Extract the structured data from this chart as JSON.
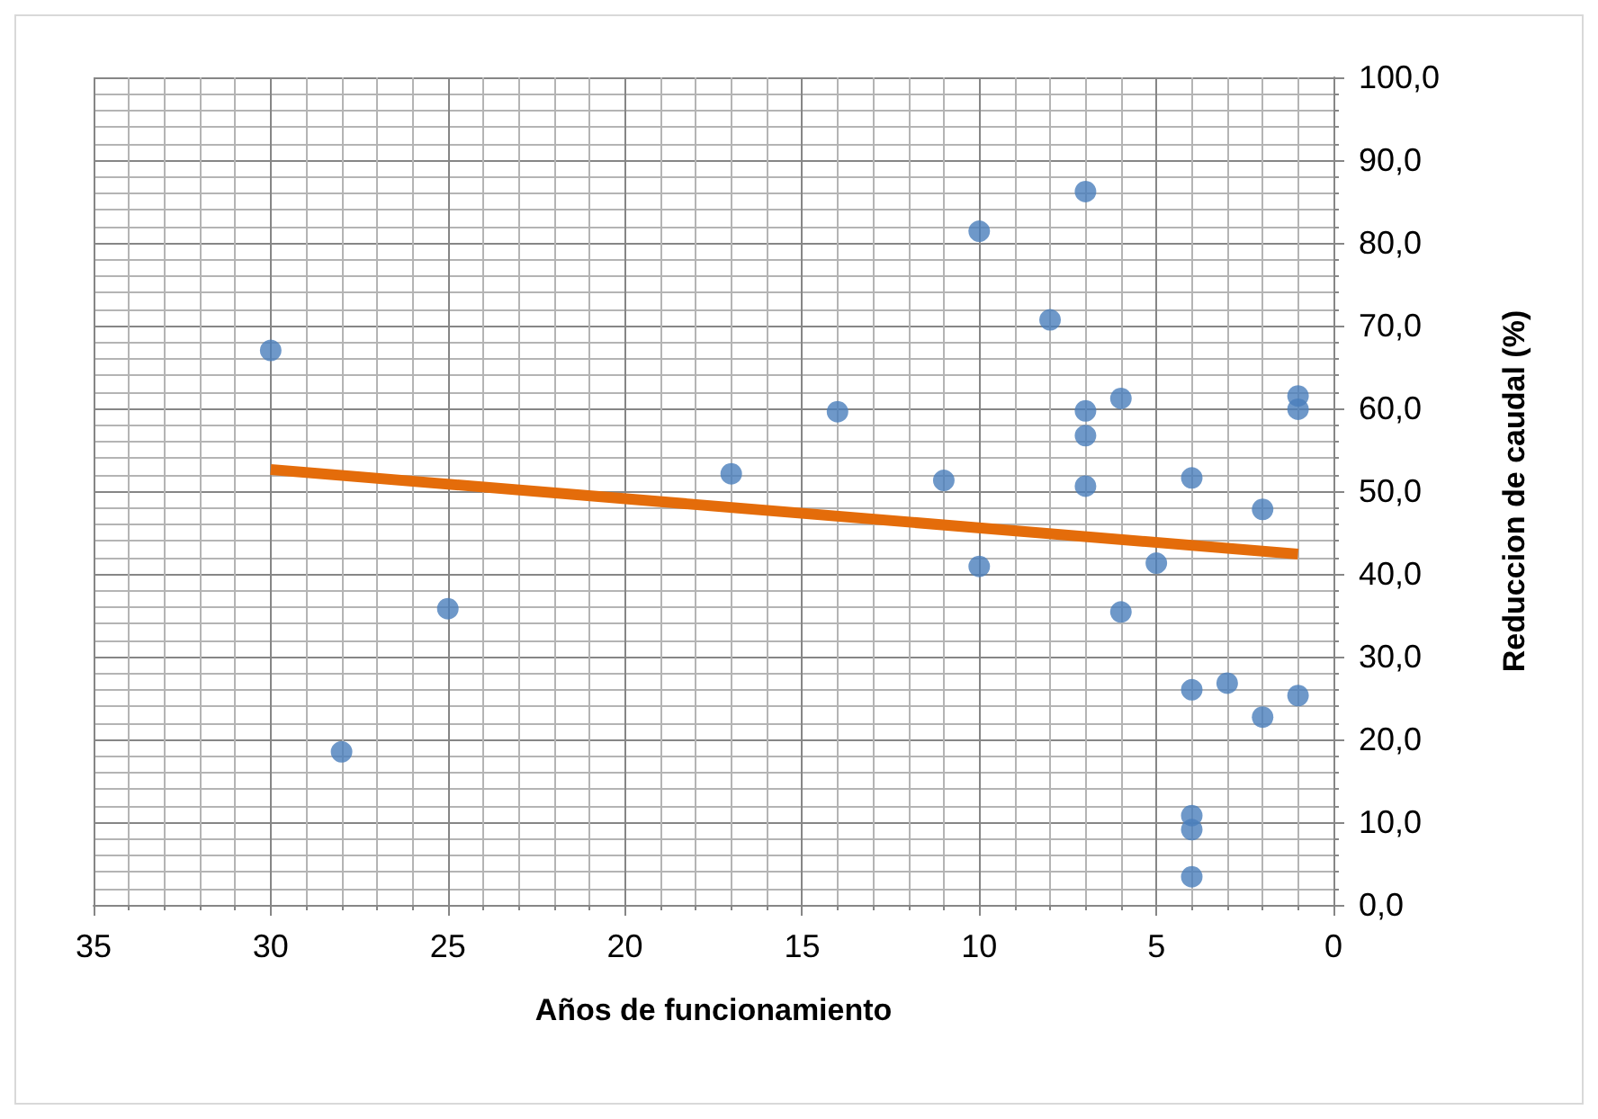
{
  "chart_data": {
    "type": "scatter",
    "xlabel": "Años de funcionamiento",
    "ylabel": "Reduccion de caudal (%)",
    "x": [
      30,
      28,
      25,
      17,
      14,
      11,
      10,
      10,
      8,
      7,
      7,
      7,
      7,
      6,
      6,
      5,
      4,
      4,
      4,
      4,
      4,
      3,
      2,
      2,
      1,
      1,
      1
    ],
    "series": [
      {
        "color": "#4a7ebb",
        "values": [
          67.0,
          18.5,
          35.8,
          52.1,
          59.6,
          51.3,
          81.4,
          40.9,
          70.7,
          86.2,
          59.7,
          56.7,
          50.6,
          61.2,
          35.4,
          41.3,
          51.6,
          26.0,
          10.8,
          9.1,
          3.4,
          26.8,
          47.8,
          22.7,
          61.5,
          59.9,
          25.3
        ]
      },
      {
        "type": "line",
        "color": "#e46c0a",
        "marker": "none",
        "x": [
          30,
          1
        ],
        "values": [
          52.6,
          42.4
        ]
      }
    ],
    "marker": "circle",
    "xlim": [
      35,
      0
    ],
    "xticks": [
      35,
      30,
      25,
      20,
      15,
      10,
      5,
      0
    ],
    "ylim": [
      0,
      100
    ],
    "yticks": [
      {
        "value": 0,
        "label": "0,0"
      },
      {
        "value": 10,
        "label": "10,0"
      },
      {
        "value": 20,
        "label": "20,0"
      },
      {
        "value": 30,
        "label": "30,0"
      },
      {
        "value": 40,
        "label": "40,0"
      },
      {
        "value": 50,
        "label": "50,0"
      },
      {
        "value": 60,
        "label": "60,0"
      },
      {
        "value": 70,
        "label": "70,0"
      },
      {
        "value": 80,
        "label": "80,0"
      },
      {
        "value": 90,
        "label": "90,0"
      },
      {
        "value": 100,
        "label": "100,0"
      }
    ],
    "grid": true
  }
}
